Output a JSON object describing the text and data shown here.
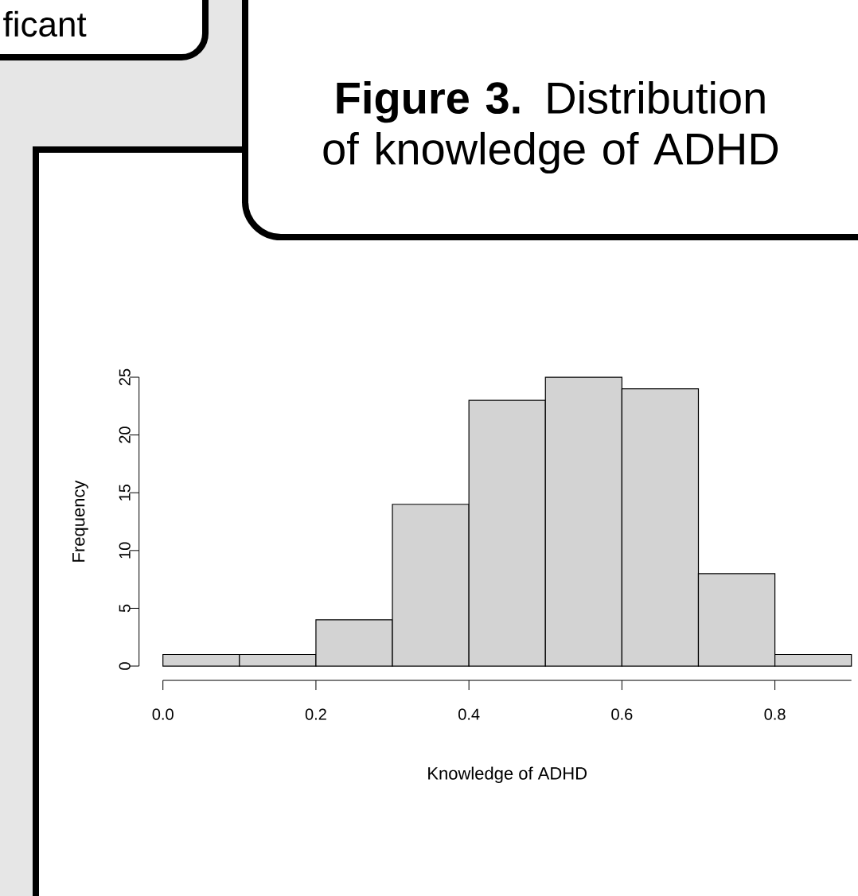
{
  "chart_data": {
    "type": "histogram",
    "title": "**Figure 3.** Distribution of knowledge of ADHD",
    "xlabel": "Knowledge of ADHD",
    "ylabel": "Frequency",
    "bins": [
      0,
      0.1,
      0.2,
      0.3,
      0.4,
      0.5,
      0.6,
      0.7,
      0.8,
      0.9
    ],
    "values": [
      1,
      1,
      4,
      14,
      23,
      25,
      24,
      8,
      1
    ],
    "color": "#d3d3d3",
    "xlim": [
      0,
      0.9
    ],
    "ylim": [
      0,
      25
    ],
    "xticks": [
      {
        "value": 0,
        "label": "0.0"
      },
      {
        "value": 0.2,
        "label": "0.2"
      },
      {
        "value": 0.4,
        "label": "0.4"
      },
      {
        "value": 0.6,
        "label": "0.6"
      },
      {
        "value": 0.8,
        "label": "0.8"
      }
    ],
    "yticks": [
      0,
      5,
      10,
      15,
      20,
      25
    ],
    "annotations": [
      "ficant"
    ]
  }
}
